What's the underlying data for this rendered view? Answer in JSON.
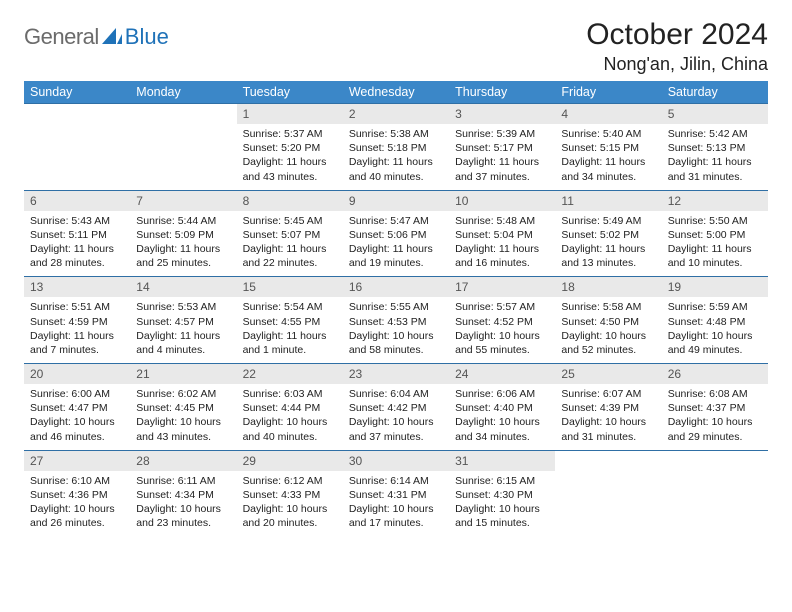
{
  "brand": {
    "part1": "General",
    "part2": "Blue"
  },
  "title": "October 2024",
  "location": "Nong'an, Jilin, China",
  "header_color": "#3b87c8",
  "rule_color": "#2f6fa5",
  "daybar_color": "#e9e9e9",
  "daynames": [
    "Sunday",
    "Monday",
    "Tuesday",
    "Wednesday",
    "Thursday",
    "Friday",
    "Saturday"
  ],
  "weeks": [
    [
      null,
      null,
      {
        "n": "1",
        "sr": "Sunrise: 5:37 AM",
        "ss": "Sunset: 5:20 PM",
        "dl": "Daylight: 11 hours and 43 minutes."
      },
      {
        "n": "2",
        "sr": "Sunrise: 5:38 AM",
        "ss": "Sunset: 5:18 PM",
        "dl": "Daylight: 11 hours and 40 minutes."
      },
      {
        "n": "3",
        "sr": "Sunrise: 5:39 AM",
        "ss": "Sunset: 5:17 PM",
        "dl": "Daylight: 11 hours and 37 minutes."
      },
      {
        "n": "4",
        "sr": "Sunrise: 5:40 AM",
        "ss": "Sunset: 5:15 PM",
        "dl": "Daylight: 11 hours and 34 minutes."
      },
      {
        "n": "5",
        "sr": "Sunrise: 5:42 AM",
        "ss": "Sunset: 5:13 PM",
        "dl": "Daylight: 11 hours and 31 minutes."
      }
    ],
    [
      {
        "n": "6",
        "sr": "Sunrise: 5:43 AM",
        "ss": "Sunset: 5:11 PM",
        "dl": "Daylight: 11 hours and 28 minutes."
      },
      {
        "n": "7",
        "sr": "Sunrise: 5:44 AM",
        "ss": "Sunset: 5:09 PM",
        "dl": "Daylight: 11 hours and 25 minutes."
      },
      {
        "n": "8",
        "sr": "Sunrise: 5:45 AM",
        "ss": "Sunset: 5:07 PM",
        "dl": "Daylight: 11 hours and 22 minutes."
      },
      {
        "n": "9",
        "sr": "Sunrise: 5:47 AM",
        "ss": "Sunset: 5:06 PM",
        "dl": "Daylight: 11 hours and 19 minutes."
      },
      {
        "n": "10",
        "sr": "Sunrise: 5:48 AM",
        "ss": "Sunset: 5:04 PM",
        "dl": "Daylight: 11 hours and 16 minutes."
      },
      {
        "n": "11",
        "sr": "Sunrise: 5:49 AM",
        "ss": "Sunset: 5:02 PM",
        "dl": "Daylight: 11 hours and 13 minutes."
      },
      {
        "n": "12",
        "sr": "Sunrise: 5:50 AM",
        "ss": "Sunset: 5:00 PM",
        "dl": "Daylight: 11 hours and 10 minutes."
      }
    ],
    [
      {
        "n": "13",
        "sr": "Sunrise: 5:51 AM",
        "ss": "Sunset: 4:59 PM",
        "dl": "Daylight: 11 hours and 7 minutes."
      },
      {
        "n": "14",
        "sr": "Sunrise: 5:53 AM",
        "ss": "Sunset: 4:57 PM",
        "dl": "Daylight: 11 hours and 4 minutes."
      },
      {
        "n": "15",
        "sr": "Sunrise: 5:54 AM",
        "ss": "Sunset: 4:55 PM",
        "dl": "Daylight: 11 hours and 1 minute."
      },
      {
        "n": "16",
        "sr": "Sunrise: 5:55 AM",
        "ss": "Sunset: 4:53 PM",
        "dl": "Daylight: 10 hours and 58 minutes."
      },
      {
        "n": "17",
        "sr": "Sunrise: 5:57 AM",
        "ss": "Sunset: 4:52 PM",
        "dl": "Daylight: 10 hours and 55 minutes."
      },
      {
        "n": "18",
        "sr": "Sunrise: 5:58 AM",
        "ss": "Sunset: 4:50 PM",
        "dl": "Daylight: 10 hours and 52 minutes."
      },
      {
        "n": "19",
        "sr": "Sunrise: 5:59 AM",
        "ss": "Sunset: 4:48 PM",
        "dl": "Daylight: 10 hours and 49 minutes."
      }
    ],
    [
      {
        "n": "20",
        "sr": "Sunrise: 6:00 AM",
        "ss": "Sunset: 4:47 PM",
        "dl": "Daylight: 10 hours and 46 minutes."
      },
      {
        "n": "21",
        "sr": "Sunrise: 6:02 AM",
        "ss": "Sunset: 4:45 PM",
        "dl": "Daylight: 10 hours and 43 minutes."
      },
      {
        "n": "22",
        "sr": "Sunrise: 6:03 AM",
        "ss": "Sunset: 4:44 PM",
        "dl": "Daylight: 10 hours and 40 minutes."
      },
      {
        "n": "23",
        "sr": "Sunrise: 6:04 AM",
        "ss": "Sunset: 4:42 PM",
        "dl": "Daylight: 10 hours and 37 minutes."
      },
      {
        "n": "24",
        "sr": "Sunrise: 6:06 AM",
        "ss": "Sunset: 4:40 PM",
        "dl": "Daylight: 10 hours and 34 minutes."
      },
      {
        "n": "25",
        "sr": "Sunrise: 6:07 AM",
        "ss": "Sunset: 4:39 PM",
        "dl": "Daylight: 10 hours and 31 minutes."
      },
      {
        "n": "26",
        "sr": "Sunrise: 6:08 AM",
        "ss": "Sunset: 4:37 PM",
        "dl": "Daylight: 10 hours and 29 minutes."
      }
    ],
    [
      {
        "n": "27",
        "sr": "Sunrise: 6:10 AM",
        "ss": "Sunset: 4:36 PM",
        "dl": "Daylight: 10 hours and 26 minutes."
      },
      {
        "n": "28",
        "sr": "Sunrise: 6:11 AM",
        "ss": "Sunset: 4:34 PM",
        "dl": "Daylight: 10 hours and 23 minutes."
      },
      {
        "n": "29",
        "sr": "Sunrise: 6:12 AM",
        "ss": "Sunset: 4:33 PM",
        "dl": "Daylight: 10 hours and 20 minutes."
      },
      {
        "n": "30",
        "sr": "Sunrise: 6:14 AM",
        "ss": "Sunset: 4:31 PM",
        "dl": "Daylight: 10 hours and 17 minutes."
      },
      {
        "n": "31",
        "sr": "Sunrise: 6:15 AM",
        "ss": "Sunset: 4:30 PM",
        "dl": "Daylight: 10 hours and 15 minutes."
      },
      null,
      null
    ]
  ]
}
